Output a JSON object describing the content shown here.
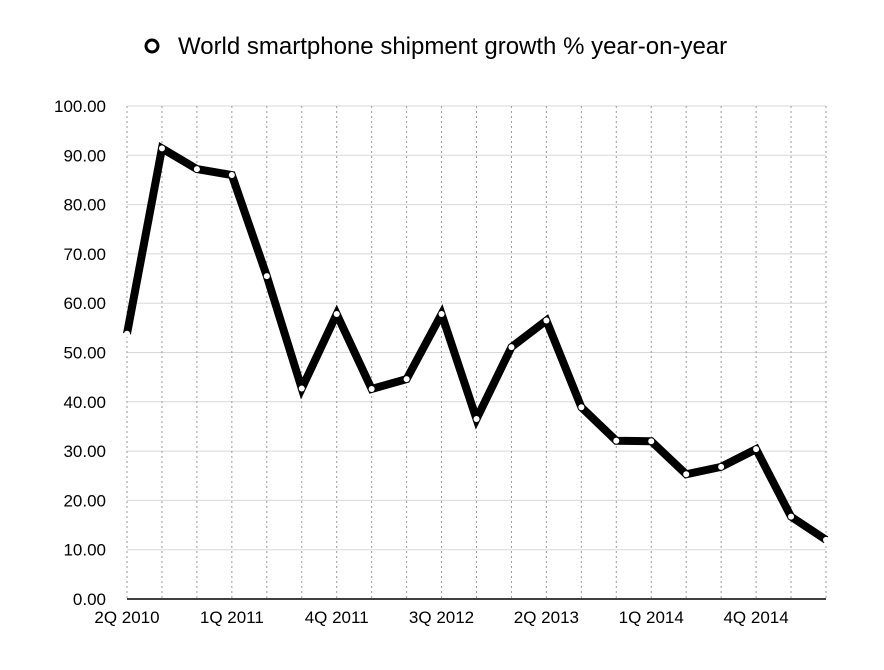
{
  "chart_data": {
    "type": "line",
    "title": "",
    "xlabel": "",
    "ylabel": "",
    "ylim": [
      0,
      100
    ],
    "yticks": [
      "0.00",
      "10.00",
      "20.00",
      "30.00",
      "40.00",
      "50.00",
      "60.00",
      "70.00",
      "80.00",
      "90.00",
      "100.00"
    ],
    "x": [
      "2Q 2010",
      "3Q 2010",
      "4Q 2010",
      "1Q 2011",
      "2Q 2011",
      "3Q 2011",
      "4Q 2011",
      "1Q 2012",
      "2Q 2012",
      "3Q 2012",
      "4Q 2012",
      "1Q 2013",
      "2Q 2013",
      "3Q 2013",
      "4Q 2013",
      "1Q 2014",
      "2Q 2014",
      "3Q 2014",
      "4Q 2014",
      "1Q 2015",
      "2Q 2015"
    ],
    "xtick_labels_shown": [
      "2Q 2010",
      "1Q 2011",
      "4Q 2011",
      "3Q 2012",
      "2Q 2013",
      "1Q 2014",
      "4Q 2014"
    ],
    "grid": true,
    "legend_position": "top-center",
    "series": [
      {
        "name": "World smartphone shipment growth % year-on-year",
        "color": "#000000",
        "values": [
          53.8,
          91.4,
          87.2,
          86.0,
          65.5,
          42.7,
          57.8,
          42.6,
          44.6,
          57.8,
          36.5,
          51.1,
          56.5,
          38.9,
          32.1,
          32.0,
          25.3,
          26.8,
          30.4,
          16.7,
          12.0
        ]
      }
    ]
  }
}
